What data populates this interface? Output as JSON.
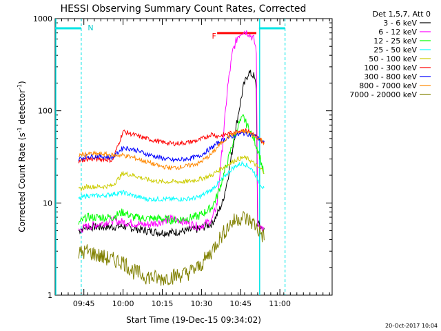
{
  "chart_data": {
    "type": "line",
    "title": "HESSI Observing Summary Count Rates, Corrected",
    "xlabel": "Start Time (19-Dec-15 09:34:02)",
    "ylabel": "Corrected Count Rate (s",
    "ylabel_sup1": "-1",
    "ylabel_mid": " detector",
    "ylabel_sup2": "-1",
    "ylabel_end": ")",
    "x_scale": "time (minutes)",
    "xlim": [
      "09:34",
      "11:20"
    ],
    "x_ticks": [
      {
        "label": "09:45",
        "t": 11
      },
      {
        "label": "10:00",
        "t": 26
      },
      {
        "label": "10:15",
        "t": 41
      },
      {
        "label": "10:30",
        "t": 56
      },
      {
        "label": "10:45",
        "t": 71
      },
      {
        "label": "11:00",
        "t": 86
      }
    ],
    "y_scale": "log",
    "ylim": [
      1,
      1000
    ],
    "y_ticks": [
      {
        "label": "1",
        "v": 1
      },
      {
        "label": "10",
        "v": 10
      },
      {
        "label": "100",
        "v": 100
      },
      {
        "label": "1000",
        "v": 1000
      }
    ],
    "grid": false,
    "legend_title": "Det 1,5,7, Att 0",
    "legend_position": "right-outside",
    "series": [
      {
        "name": "3 - 6 keV",
        "color": "#000000",
        "points": [
          [
            9,
            5
          ],
          [
            12,
            5.5
          ],
          [
            18,
            5.5
          ],
          [
            22,
            5.5
          ],
          [
            26,
            5.6
          ],
          [
            30,
            5.3
          ],
          [
            35,
            5.0
          ],
          [
            40,
            4.8
          ],
          [
            45,
            4.8
          ],
          [
            50,
            5.0
          ],
          [
            55,
            5.2
          ],
          [
            60,
            6.0
          ],
          [
            62,
            7.5
          ],
          [
            64,
            10
          ],
          [
            66,
            18
          ],
          [
            68,
            40
          ],
          [
            70,
            90
          ],
          [
            72,
            180
          ],
          [
            74,
            260
          ],
          [
            76,
            240
          ],
          [
            77,
            180
          ],
          [
            77.5,
            6
          ],
          [
            80,
            5
          ]
        ]
      },
      {
        "name": "6 - 12 keV",
        "color": "#ff00ff",
        "points": [
          [
            9,
            5
          ],
          [
            12,
            5.5
          ],
          [
            18,
            6
          ],
          [
            22,
            6.5
          ],
          [
            26,
            6.2
          ],
          [
            30,
            6.0
          ],
          [
            35,
            5.8
          ],
          [
            40,
            6.2
          ],
          [
            45,
            6.8
          ],
          [
            50,
            6.2
          ],
          [
            55,
            5.5
          ],
          [
            60,
            6.5
          ],
          [
            62,
            10
          ],
          [
            64,
            40
          ],
          [
            66,
            180
          ],
          [
            68,
            450
          ],
          [
            70,
            650
          ],
          [
            72,
            740
          ],
          [
            74,
            700
          ],
          [
            76,
            600
          ],
          [
            77,
            450
          ],
          [
            77.5,
            6
          ],
          [
            80,
            5
          ]
        ]
      },
      {
        "name": "12 - 25 keV",
        "color": "#00ff00",
        "points": [
          [
            9,
            6
          ],
          [
            12,
            7
          ],
          [
            18,
            7
          ],
          [
            22,
            7
          ],
          [
            26,
            8
          ],
          [
            30,
            7
          ],
          [
            35,
            6.8
          ],
          [
            40,
            6.8
          ],
          [
            45,
            6.5
          ],
          [
            50,
            6.8
          ],
          [
            55,
            7.2
          ],
          [
            60,
            9
          ],
          [
            62,
            12
          ],
          [
            64,
            18
          ],
          [
            66,
            28
          ],
          [
            68,
            45
          ],
          [
            70,
            70
          ],
          [
            72,
            85
          ],
          [
            74,
            65
          ],
          [
            76,
            50
          ],
          [
            78,
            35
          ],
          [
            80,
            20
          ]
        ]
      },
      {
        "name": "25 - 50 keV",
        "color": "#00ffff",
        "points": [
          [
            9,
            11
          ],
          [
            12,
            12
          ],
          [
            18,
            12
          ],
          [
            22,
            12.5
          ],
          [
            26,
            13
          ],
          [
            30,
            12
          ],
          [
            35,
            11
          ],
          [
            40,
            11
          ],
          [
            45,
            11
          ],
          [
            50,
            11
          ],
          [
            55,
            11.5
          ],
          [
            60,
            14
          ],
          [
            62,
            16
          ],
          [
            64,
            18
          ],
          [
            66,
            21
          ],
          [
            68,
            24
          ],
          [
            70,
            26
          ],
          [
            72,
            27
          ],
          [
            74,
            25
          ],
          [
            76,
            22
          ],
          [
            78,
            17
          ],
          [
            80,
            14
          ]
        ]
      },
      {
        "name": "50 - 100 keV",
        "color": "#cccc00",
        "points": [
          [
            9,
            14
          ],
          [
            12,
            15
          ],
          [
            18,
            15
          ],
          [
            22,
            15.5
          ],
          [
            26,
            21
          ],
          [
            30,
            20
          ],
          [
            35,
            18
          ],
          [
            40,
            17
          ],
          [
            45,
            17
          ],
          [
            50,
            17
          ],
          [
            55,
            18
          ],
          [
            60,
            20
          ],
          [
            62,
            22
          ],
          [
            64,
            24
          ],
          [
            66,
            26
          ],
          [
            68,
            28
          ],
          [
            70,
            30
          ],
          [
            72,
            31
          ],
          [
            74,
            30
          ],
          [
            76,
            27
          ],
          [
            78,
            24
          ],
          [
            80,
            22
          ]
        ]
      },
      {
        "name": "100 - 300 keV",
        "color": "#ff0000",
        "points": [
          [
            9,
            28
          ],
          [
            12,
            30
          ],
          [
            18,
            30
          ],
          [
            22,
            29
          ],
          [
            26,
            60
          ],
          [
            30,
            55
          ],
          [
            35,
            50
          ],
          [
            40,
            46
          ],
          [
            45,
            44
          ],
          [
            50,
            45
          ],
          [
            55,
            48
          ],
          [
            60,
            56
          ],
          [
            62,
            53
          ],
          [
            64,
            54
          ],
          [
            66,
            56
          ],
          [
            68,
            58
          ],
          [
            70,
            60
          ],
          [
            72,
            62
          ],
          [
            74,
            60
          ],
          [
            76,
            55
          ],
          [
            78,
            50
          ],
          [
            80,
            45
          ]
        ]
      },
      {
        "name": "300 - 800 keV",
        "color": "#0000ff",
        "points": [
          [
            9,
            30
          ],
          [
            12,
            32
          ],
          [
            18,
            32
          ],
          [
            22,
            31
          ],
          [
            26,
            40
          ],
          [
            30,
            38
          ],
          [
            35,
            34
          ],
          [
            40,
            31
          ],
          [
            45,
            29
          ],
          [
            50,
            30
          ],
          [
            55,
            32
          ],
          [
            60,
            40
          ],
          [
            62,
            44
          ],
          [
            64,
            48
          ],
          [
            66,
            51
          ],
          [
            68,
            53
          ],
          [
            70,
            55
          ],
          [
            72,
            57
          ],
          [
            74,
            56
          ],
          [
            76,
            54
          ],
          [
            78,
            50
          ],
          [
            80,
            44
          ]
        ]
      },
      {
        "name": "800 - 7000 keV",
        "color": "#ff8800",
        "points": [
          [
            9,
            33
          ],
          [
            12,
            34
          ],
          [
            18,
            34
          ],
          [
            22,
            33
          ],
          [
            26,
            33
          ],
          [
            30,
            31
          ],
          [
            35,
            28
          ],
          [
            40,
            25
          ],
          [
            45,
            24
          ],
          [
            50,
            25
          ],
          [
            55,
            27
          ],
          [
            60,
            34
          ],
          [
            62,
            40
          ],
          [
            64,
            46
          ],
          [
            66,
            52
          ],
          [
            68,
            56
          ],
          [
            70,
            58
          ],
          [
            72,
            60
          ],
          [
            74,
            58
          ],
          [
            76,
            54
          ],
          [
            78,
            50
          ],
          [
            80,
            45
          ]
        ]
      },
      {
        "name": "7000 - 20000 keV",
        "color": "#808000",
        "points": [
          [
            9,
            2.8
          ],
          [
            12,
            3
          ],
          [
            18,
            2.6
          ],
          [
            22,
            2.4
          ],
          [
            26,
            2.3
          ],
          [
            30,
            1.8
          ],
          [
            35,
            1.6
          ],
          [
            40,
            1.5
          ],
          [
            45,
            1.6
          ],
          [
            50,
            1.7
          ],
          [
            55,
            2.0
          ],
          [
            60,
            3.0
          ],
          [
            62,
            3.8
          ],
          [
            64,
            4.5
          ],
          [
            66,
            5.5
          ],
          [
            68,
            6.2
          ],
          [
            70,
            6.8
          ],
          [
            72,
            7.0
          ],
          [
            74,
            6.5
          ],
          [
            76,
            6.0
          ],
          [
            78,
            5.0
          ],
          [
            80,
            4.2
          ]
        ]
      }
    ],
    "annotations": [
      {
        "text": "N",
        "color": "#00cccc",
        "t": 12.5,
        "v": 800
      },
      {
        "text": "F",
        "color": "#ff0000",
        "t": 60,
        "v": 650
      }
    ],
    "night_bars": [
      {
        "t0": 0,
        "t1": 10,
        "color": "#00e5e5"
      },
      {
        "t0": 78,
        "t1": 88,
        "color": "#00e5e5"
      }
    ],
    "flare_bar": {
      "t0": 62,
      "t1": 77,
      "color": "#ff0000"
    }
  },
  "footer": {
    "timestamp": "20-Oct-2017 10:04"
  }
}
